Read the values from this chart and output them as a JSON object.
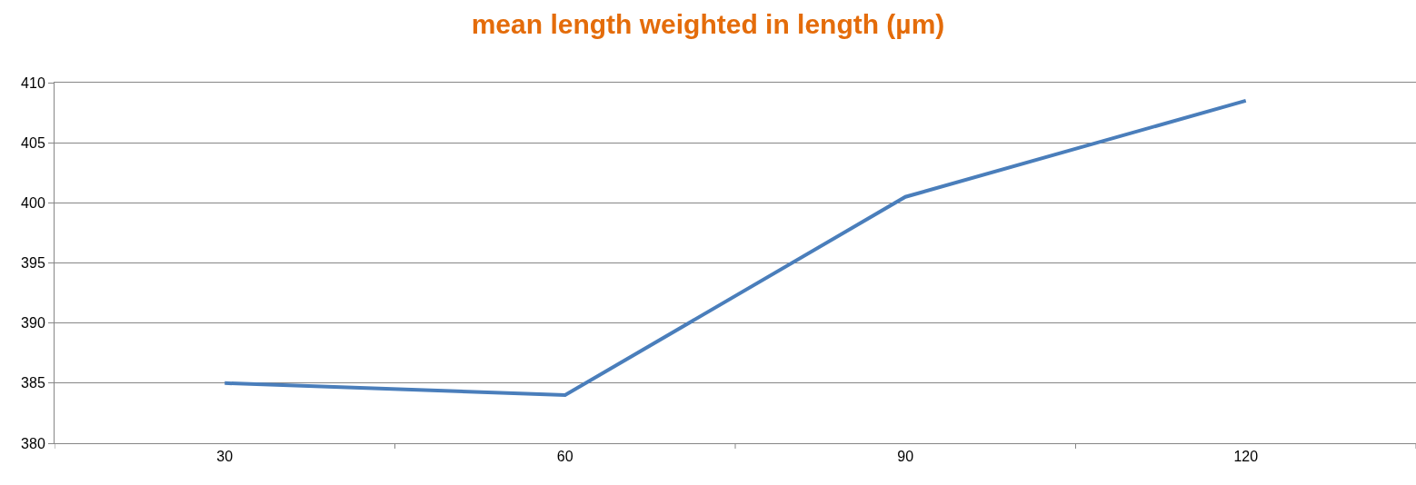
{
  "chart_data": {
    "type": "line",
    "title": "mean length weighted in length (µm)",
    "categories": [
      "30",
      "60",
      "90",
      "120"
    ],
    "series": [
      {
        "color": "#4a7ebb",
        "values": [
          385,
          384,
          400.5,
          408.5
        ]
      }
    ],
    "ylim": [
      380,
      410
    ],
    "yticks": [
      380,
      385,
      390,
      395,
      400,
      405,
      410
    ],
    "grid": "y",
    "marker": "none",
    "line_style": "solid"
  }
}
